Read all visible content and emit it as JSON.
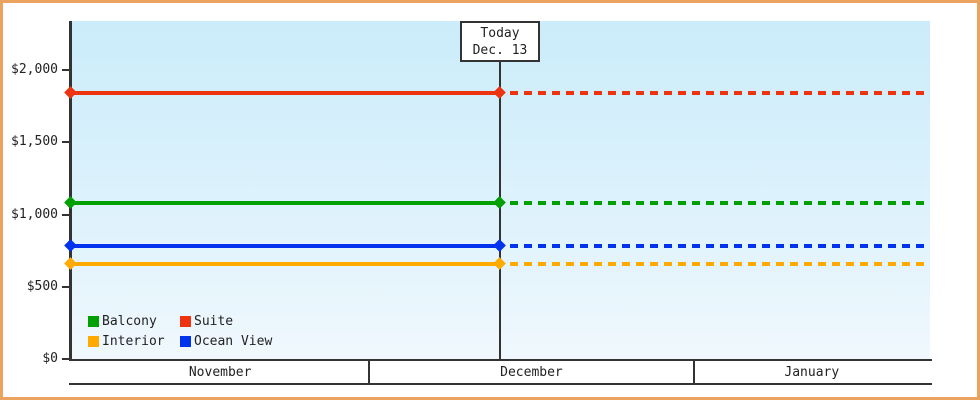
{
  "chart_data": {
    "type": "line",
    "description": "Flat price lines per cabin category; solid before today, dotted projection after today",
    "y_axis": {
      "ticks": [
        {
          "label": "$0",
          "value": 0
        },
        {
          "label": "$500",
          "value": 500
        },
        {
          "label": "$1,000",
          "value": 1000
        },
        {
          "label": "$1,500",
          "value": 1500
        },
        {
          "label": "$2,000",
          "value": 2000
        }
      ],
      "ylim": [
        0,
        2340
      ],
      "grid": false
    },
    "x_axis": {
      "months": [
        "November",
        "December",
        "January"
      ],
      "boundaries_frac": [
        0,
        0.3473,
        0.7248,
        1
      ]
    },
    "today": {
      "line1": "Today",
      "line2": "Dec. 13",
      "x_frac": 0.499
    },
    "series": [
      {
        "name": "Balcony",
        "color": "#00a000",
        "value": 1080
      },
      {
        "name": "Suite",
        "color": "#ee3311",
        "value": 1840
      },
      {
        "name": "Interior",
        "color": "#ffaa00",
        "value": 660
      },
      {
        "name": "Ocean View",
        "color": "#0033ee",
        "value": 780
      }
    ],
    "line_style": {
      "before_today": "solid",
      "after_today": "dashed",
      "marker": "diamond"
    },
    "legend": {
      "columns": 2,
      "position": "bottom-left-inside"
    },
    "colors": {
      "axis": "#333333",
      "frame_border": "#eca35e",
      "plot_gradient_top": "#cbecfa",
      "plot_gradient_bottom": "#f0f8fd",
      "annotation_bg": "#ffffff"
    }
  }
}
